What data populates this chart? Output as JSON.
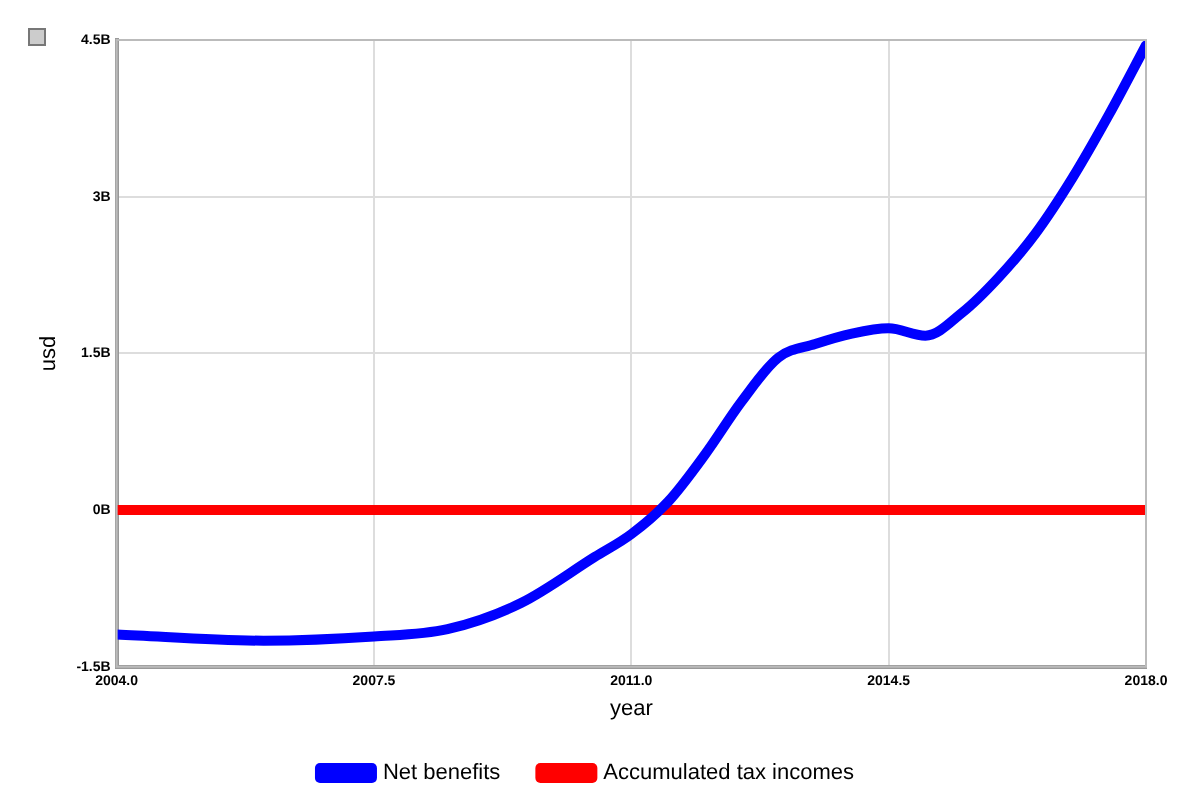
{
  "chart_data": {
    "type": "line",
    "xlabel": "year",
    "ylabel": "usd",
    "xlim": [
      2004,
      2018
    ],
    "xticks": [
      {
        "value": 2004,
        "label": "2004.0"
      },
      {
        "value": 2007.5,
        "label": "2007.5"
      },
      {
        "value": 2011,
        "label": "2011.0"
      },
      {
        "value": 2014.5,
        "label": "2014.5"
      },
      {
        "value": 2018,
        "label": "2018.0"
      }
    ],
    "ylim": [
      -1.5,
      4.5
    ],
    "yticks": [
      {
        "value": -1.5,
        "label": "-1.5B"
      },
      {
        "value": 0,
        "label": "0B"
      },
      {
        "value": 1.5,
        "label": "1.5B"
      },
      {
        "value": 3,
        "label": "3B"
      },
      {
        "value": 4.5,
        "label": "4.5B"
      }
    ],
    "series": [
      {
        "name": "Net benefits",
        "color": "#0000ff",
        "x": [
          2004,
          2006,
          2007.5,
          2008.5,
          2009.5,
          2010.5,
          2011,
          2011.5,
          2012,
          2012.5,
          2013,
          2013.5,
          2014,
          2014.5,
          2015,
          2015.5,
          2016,
          2016.5,
          2017,
          2017.5,
          2018
        ],
        "values": [
          -1.19,
          -1.25,
          -1.21,
          -1.14,
          -0.89,
          -0.45,
          -0.23,
          0.08,
          0.53,
          1.04,
          1.46,
          1.59,
          1.69,
          1.74,
          1.67,
          1.89,
          2.23,
          2.65,
          3.18,
          3.79,
          4.45
        ]
      },
      {
        "name": "Accumulated tax incomes",
        "color": "#ff0000",
        "x": [
          2004,
          2018
        ],
        "values": [
          0,
          0
        ]
      }
    ],
    "grid": true,
    "legend": "bottom",
    "marker": "none",
    "line_style": "solid"
  }
}
